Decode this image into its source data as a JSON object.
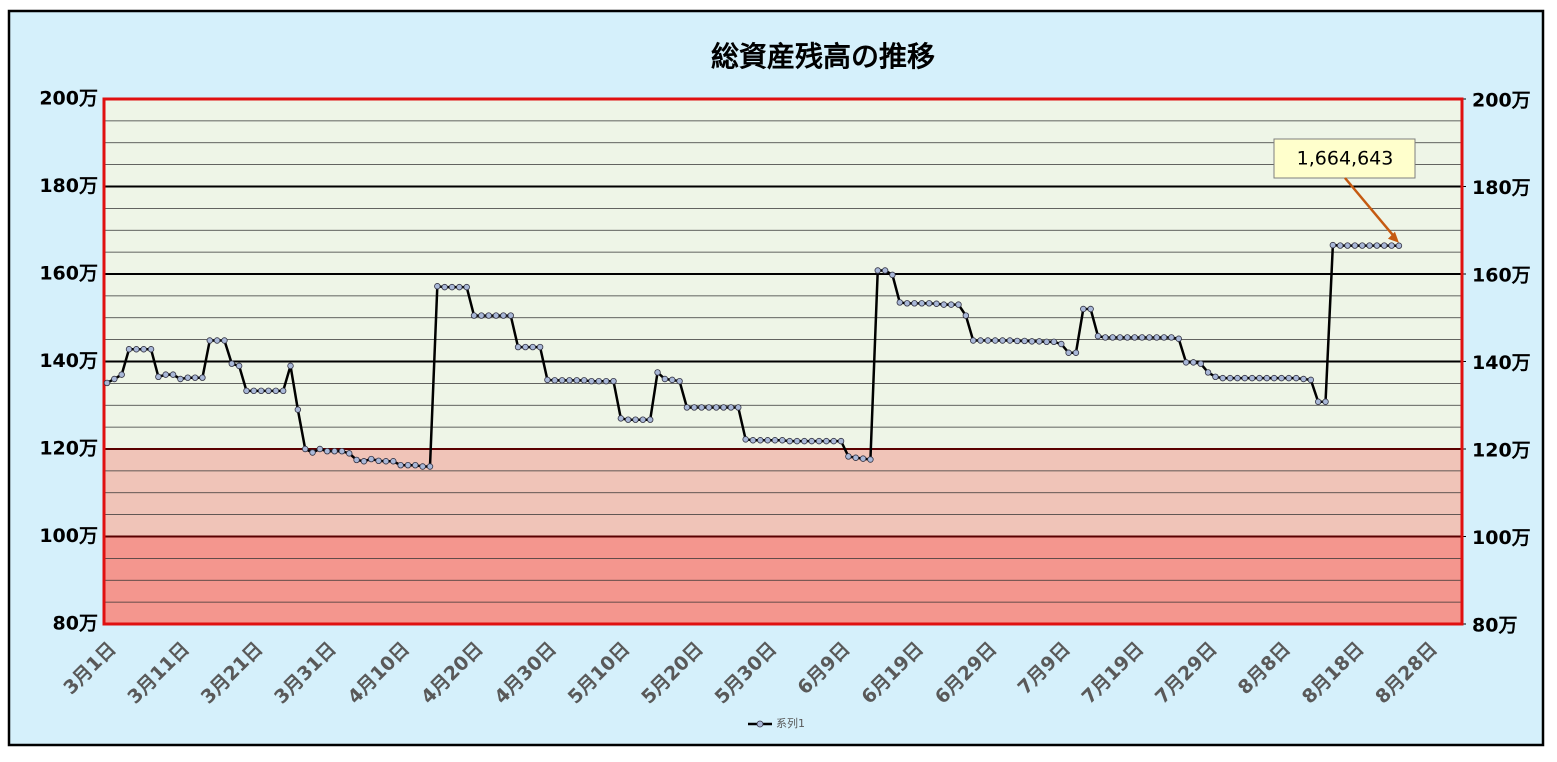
{
  "chart_data": {
    "type": "line",
    "title": "総資産残高の推移",
    "categories": [
      "3月1日",
      null,
      null,
      null,
      null,
      null,
      null,
      null,
      null,
      null,
      "3月11日",
      null,
      null,
      null,
      null,
      null,
      null,
      null,
      null,
      null,
      "3月21日",
      null,
      null,
      null,
      null,
      null,
      null,
      null,
      null,
      null,
      "3月31日",
      null,
      null,
      null,
      null,
      null,
      null,
      null,
      null,
      null,
      "4月10日",
      null,
      null,
      null,
      null,
      null,
      null,
      null,
      null,
      null,
      "4月20日",
      null,
      null,
      null,
      null,
      null,
      null,
      null,
      null,
      null,
      "4月30日",
      null,
      null,
      null,
      null,
      null,
      null,
      null,
      null,
      null,
      "5月10日",
      null,
      null,
      null,
      null,
      null,
      null,
      null,
      null,
      null,
      "5月20日",
      null,
      null,
      null,
      null,
      null,
      null,
      null,
      null,
      null,
      "5月30日",
      null,
      null,
      null,
      null,
      null,
      null,
      null,
      null,
      null,
      "6月9日",
      null,
      null,
      null,
      null,
      null,
      null,
      null,
      null,
      null,
      "6月19日",
      null,
      null,
      null,
      null,
      null,
      null,
      null,
      null,
      null,
      "6月29日",
      null,
      null,
      null,
      null,
      null,
      null,
      null,
      null,
      null,
      "7月9日",
      null,
      null,
      null,
      null,
      null,
      null,
      null,
      null,
      null,
      "7月19日",
      null,
      null,
      null,
      null,
      null,
      null,
      null,
      null,
      null,
      "7月29日",
      null,
      null,
      null,
      null,
      null,
      null,
      null,
      null,
      null,
      "8月8日",
      null,
      null,
      null,
      null,
      null,
      null,
      null,
      null,
      null,
      "8月18日",
      null,
      null,
      null,
      null,
      null,
      null,
      null,
      null,
      null,
      "8月28日",
      null,
      null,
      null,
      null
    ],
    "series": [
      {
        "name": "系列1",
        "color": "#000000",
        "marker_color": "#a9b8d8",
        "values": [
          1351000,
          1360000,
          1370000,
          1428000,
          1428000,
          1428000,
          1428000,
          1365000,
          1370000,
          1370000,
          1360000,
          1363000,
          1363000,
          1363000,
          1448000,
          1448000,
          1448000,
          1395000,
          1390000,
          1333000,
          1333000,
          1333000,
          1333000,
          1333000,
          1333000,
          1390000,
          1290000,
          1200000,
          1192000,
          1200000,
          1195000,
          1195000,
          1195000,
          1190000,
          1175000,
          1172000,
          1177000,
          1173000,
          1172000,
          1172000,
          1163000,
          1163000,
          1163000,
          1160000,
          1160000,
          1572000,
          1570000,
          1570000,
          1570000,
          1570000,
          1505000,
          1505000,
          1505000,
          1505000,
          1505000,
          1505000,
          1433000,
          1433000,
          1433000,
          1433000,
          1358000,
          1357000,
          1357000,
          1357000,
          1357000,
          1357000,
          1355000,
          1355000,
          1355000,
          1355000,
          1270000,
          1267000,
          1267000,
          1267000,
          1267000,
          1375000,
          1360000,
          1358000,
          1355000,
          1295000,
          1295000,
          1295000,
          1295000,
          1295000,
          1295000,
          1295000,
          1295000,
          1222000,
          1220000,
          1220000,
          1220000,
          1220000,
          1220000,
          1218000,
          1218000,
          1218000,
          1218000,
          1218000,
          1218000,
          1218000,
          1218000,
          1183000,
          1180000,
          1178000,
          1176000,
          1608000,
          1608000,
          1598000,
          1535000,
          1533000,
          1533000,
          1533000,
          1533000,
          1532000,
          1530000,
          1530000,
          1530000,
          1505000,
          1448000,
          1448000,
          1448000,
          1448000,
          1448000,
          1448000,
          1447000,
          1447000,
          1446000,
          1446000,
          1445000,
          1445000,
          1440000,
          1420000,
          1420000,
          1520000,
          1520000,
          1458000,
          1455000,
          1455000,
          1455000,
          1455000,
          1455000,
          1455000,
          1455000,
          1455000,
          1455000,
          1455000,
          1452000,
          1398000,
          1398000,
          1395000,
          1375000,
          1365000,
          1362000,
          1362000,
          1362000,
          1362000,
          1362000,
          1362000,
          1362000,
          1362000,
          1362000,
          1362000,
          1362000,
          1360000,
          1358000,
          1308000,
          1308000,
          1666000,
          1665000,
          1665000,
          1665000,
          1665000,
          1665000,
          1665000,
          1665000,
          1665000,
          1664643,
          null,
          null,
          null,
          null,
          null,
          null,
          null,
          null
        ]
      }
    ],
    "ylim": [
      800000,
      2000000
    ],
    "yticks": [
      {
        "value": 800000,
        "label": "80万"
      },
      {
        "value": 1000000,
        "label": "100万"
      },
      {
        "value": 1200000,
        "label": "120万"
      },
      {
        "value": 1400000,
        "label": "140万"
      },
      {
        "value": 1600000,
        "label": "160万"
      },
      {
        "value": 1800000,
        "label": "180万"
      },
      {
        "value": 2000000,
        "label": "200万"
      }
    ],
    "y2lim": [
      800000,
      2000000
    ],
    "y2ticks": [
      {
        "value": 800000,
        "label": "80万"
      },
      {
        "value": 1000000,
        "label": "100万"
      },
      {
        "value": 1200000,
        "label": "120万"
      },
      {
        "value": 1400000,
        "label": "140万"
      },
      {
        "value": 1600000,
        "label": "160万"
      },
      {
        "value": 1800000,
        "label": "180万"
      },
      {
        "value": 2000000,
        "label": "200万"
      }
    ],
    "minor_grid": [
      850000,
      900000,
      950000,
      1050000,
      1100000,
      1150000,
      1250000,
      1300000,
      1350000,
      1450000,
      1500000,
      1550000,
      1650000,
      1700000,
      1750000,
      1850000,
      1900000,
      1950000
    ],
    "bands": [
      {
        "from": 800000,
        "to": 1000000,
        "color": "#f4968e"
      },
      {
        "from": 1000000,
        "to": 1200000,
        "color": "#f0c4b8"
      },
      {
        "from": 1200000,
        "to": 2000000,
        "color": "#eef5e7"
      }
    ],
    "annotation": "1,664,643",
    "legend": "bottom"
  }
}
